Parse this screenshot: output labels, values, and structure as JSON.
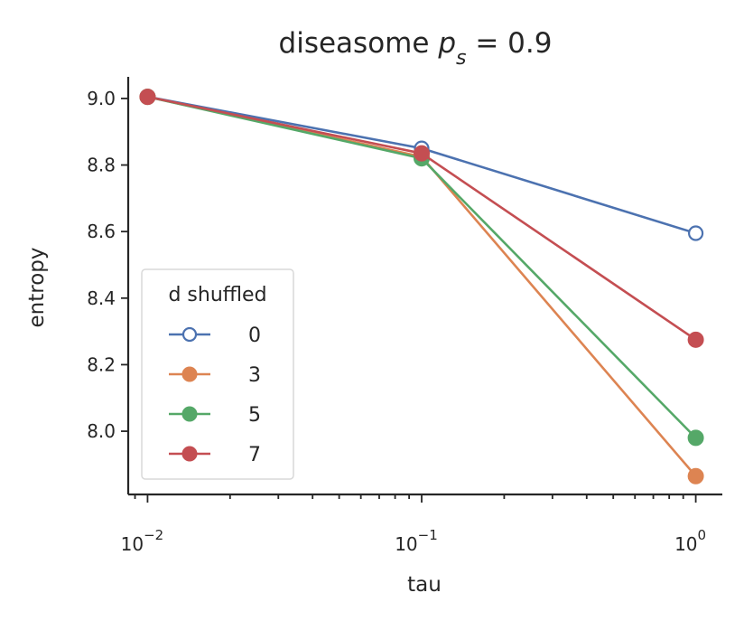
{
  "chart_data": {
    "type": "line",
    "title": "diseasome",
    "title_math": {
      "base": "p",
      "sub": "s",
      "rest": " = 0.9"
    },
    "xlabel": "tau",
    "ylabel": "entropy",
    "xscale": "log",
    "xlim": [
      0.0085,
      1.25
    ],
    "ylim": [
      7.81,
      9.065
    ],
    "x": [
      0.01,
      0.1,
      1.0
    ],
    "xticks": [
      {
        "value": 0.01,
        "base": "10",
        "exp": "−2"
      },
      {
        "value": 0.1,
        "base": "10",
        "exp": "−1"
      },
      {
        "value": 1.0,
        "base": "10",
        "exp": "0"
      }
    ],
    "yticks": [
      {
        "value": 8.0,
        "label": "8.0"
      },
      {
        "value": 8.2,
        "label": "8.2"
      },
      {
        "value": 8.4,
        "label": "8.4"
      },
      {
        "value": 8.6,
        "label": "8.6"
      },
      {
        "value": 8.8,
        "label": "8.8"
      },
      {
        "value": 9.0,
        "label": "9.0"
      }
    ],
    "legend": {
      "title": "d shuffled",
      "placement": "lower left"
    },
    "grid": false,
    "series": [
      {
        "name": "0",
        "color": "#4c72b0",
        "marker": "open-circle",
        "values": [
          9.005,
          8.85,
          8.595
        ]
      },
      {
        "name": "3",
        "color": "#dd8452",
        "marker": "circle",
        "values": [
          9.005,
          8.825,
          7.865
        ]
      },
      {
        "name": "5",
        "color": "#55a868",
        "marker": "circle",
        "values": [
          9.005,
          8.82,
          7.98
        ]
      },
      {
        "name": "7",
        "color": "#c44e52",
        "marker": "circle",
        "values": [
          9.005,
          8.835,
          8.275
        ]
      }
    ]
  }
}
